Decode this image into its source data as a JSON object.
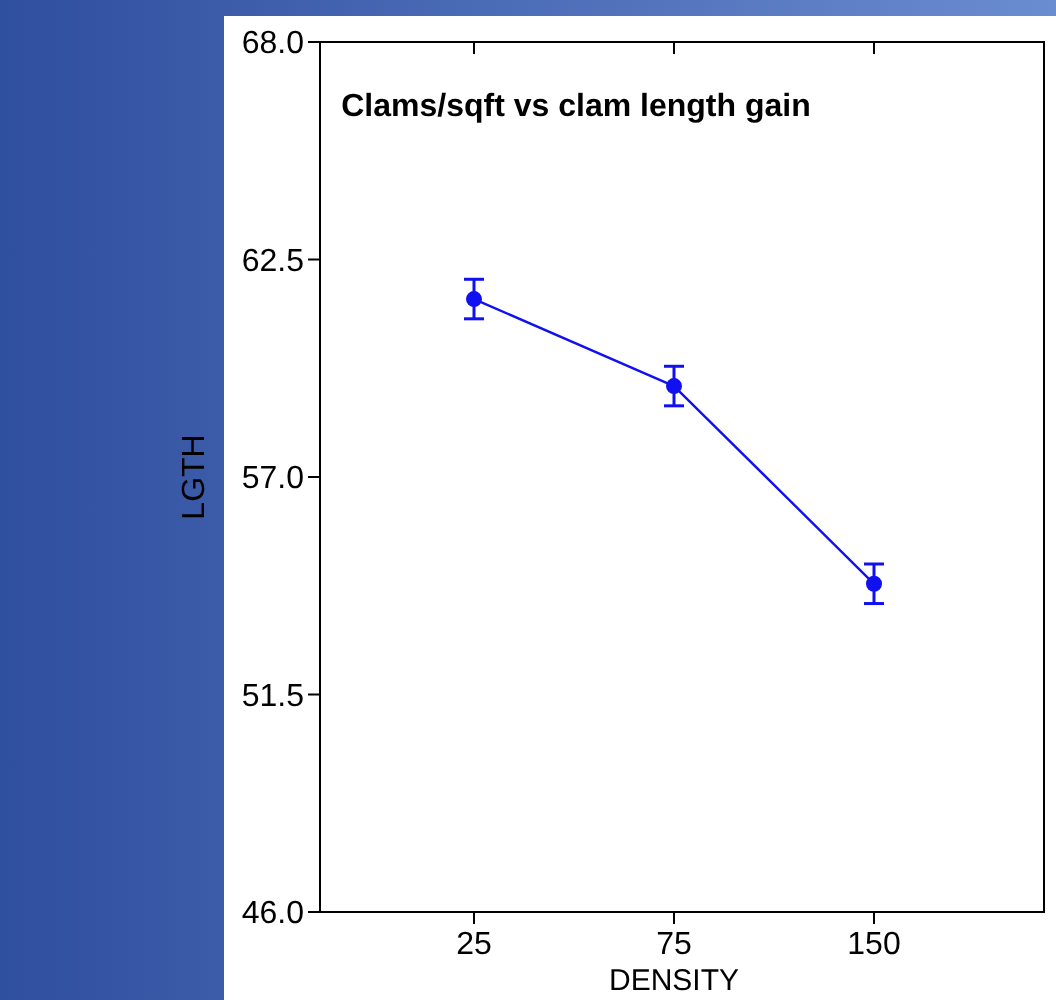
{
  "chart_data": {
    "type": "line",
    "title": "Clams/sqft vs clam length gain",
    "xlabel": "DENSITY",
    "ylabel": "LGTH",
    "categories": [
      "25",
      "75",
      "150"
    ],
    "series": [
      {
        "color": "#1010f0",
        "values": [
          61.5,
          59.3,
          54.3
        ],
        "errors": [
          0.5,
          0.5,
          0.5
        ]
      }
    ],
    "ylim": [
      46,
      68
    ],
    "yticks": [
      {
        "value": 46,
        "label": "46.0"
      },
      {
        "value": 51.5,
        "label": "51.5"
      },
      {
        "value": 57,
        "label": "57.0"
      },
      {
        "value": 62.5,
        "label": "62.5"
      },
      {
        "value": 68,
        "label": "68.0"
      }
    ],
    "marker": "circle",
    "line_style": "solid",
    "grid": false
  }
}
